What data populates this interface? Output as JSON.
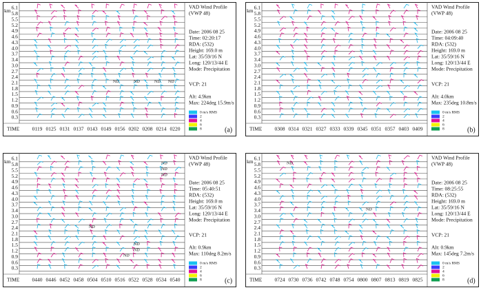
{
  "km": "km",
  "time_label": "TIME",
  "heights": [
    "6.1",
    "5.8",
    "5.5",
    "5.2",
    "4.9",
    "4.6",
    "4.3",
    "4.0",
    "3.7",
    "3.4",
    "3.0",
    "2.7",
    "2.4",
    "2.1",
    "1.8",
    "1.5",
    "1.2",
    "0.9",
    "0.6",
    "0.3"
  ],
  "legend": [
    "0 m/s RMS",
    "2",
    "4",
    "6",
    "8"
  ],
  "panels": [
    {
      "label": "(a)",
      "times": [
        "0119",
        "0125",
        "0131",
        "0137",
        "0143",
        "0149",
        "0156",
        "0202",
        "0208",
        "0214",
        "0220"
      ],
      "info": [
        "VAD Wind Profile",
        "(VWP 48)",
        "Date: 2006 08 25",
        "Time: 02:20:17",
        "RDA:  (532)",
        "Height: 169.0 m",
        "Lat:  35/59/16 N",
        "Long: 120/13/44 E",
        "Mode: Precipitation",
        "VCP: 21",
        "Alt:  4.9km",
        "Max:  224deg 15.9m/s"
      ],
      "nd": [
        "ND",
        "ND",
        "ND",
        "ND"
      ]
    },
    {
      "label": "(b)",
      "times": [
        "0308",
        "0314",
        "0321",
        "0327",
        "0333",
        "0339",
        "0345",
        "0351",
        "0357",
        "0403",
        "0409"
      ],
      "info": [
        "VAD Wind Profile",
        "(VWP 48)",
        "Date: 2006 08 25",
        "Time: 04:09:40",
        "RDA:  (532)",
        "Height: 169.0 m",
        "Lat:  35/59/16 N",
        "Long: 120/13/44 E",
        "Mode: Precipitation",
        "VCP: 21",
        "Alt:  4.0km",
        "Max:  235deg 10.8m/s"
      ],
      "nd": []
    },
    {
      "label": "(c)",
      "times": [
        "0440",
        "0446",
        "0452",
        "0458",
        "0504",
        "0510",
        "0516",
        "0522",
        "0528",
        "0534",
        "0540"
      ],
      "info": [
        "VAD Wind Profile",
        "(VWP 48)",
        "Date: 2006 08 25",
        "Time: 05:40:51",
        "RDA:  (532)",
        "Height: 169.0 m",
        "Lat:  35/59/16 N",
        "Long: 120/13/44 E",
        "Mode: Precipitation",
        "VCP: 21",
        "Alt:  0.9km",
        "Max:  110deg 8.2m/s"
      ],
      "nd": [
        "ND",
        "ND",
        "ND",
        "ND",
        "ND",
        "ND",
        "ND"
      ]
    },
    {
      "label": "(d)",
      "times": [
        "0724",
        "0730",
        "0736",
        "0742",
        "0748",
        "0754",
        "0800",
        "0807",
        "0813",
        "0819",
        "0825"
      ],
      "info": [
        "VAD Wind Profile",
        "(VWP 48)",
        "Date: 2006 08 25",
        "Time: 08:25:55",
        "RDA:  (532)",
        "Height: 169.0 m",
        "Lat:  35/59/16 N",
        "Long: 120/13/44 E",
        "Mode: Precipitation",
        "VCP: 21",
        "Alt:  0.9km",
        "Max:  145deg 7.2m/s"
      ],
      "nd": [
        "ND",
        "ND"
      ]
    }
  ]
}
